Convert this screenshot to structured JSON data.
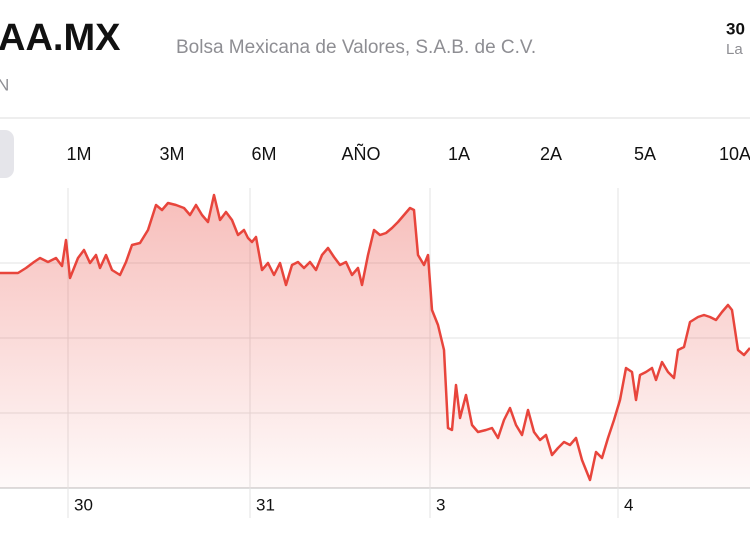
{
  "header": {
    "ticker": "AA.MX",
    "exchange": "Bolsa Mexicana de Valores, S.A.B. de C.V.",
    "sub": "N",
    "right_top": "30",
    "right_sub": "La"
  },
  "ranges": [
    "1M",
    "3M",
    "6M",
    "AÑO",
    "1A",
    "2A",
    "5A",
    "10A"
  ],
  "chart_data": {
    "type": "line",
    "color": "#e8453c",
    "grid": true,
    "xlim": [
      0,
      750
    ],
    "ylim": [
      0,
      300
    ],
    "xticks": [
      {
        "value": 68,
        "label": "30"
      },
      {
        "value": 250,
        "label": "31"
      },
      {
        "value": 430,
        "label": "3"
      },
      {
        "value": 618,
        "label": "4"
      }
    ],
    "x": [
      0,
      18,
      26,
      34,
      40,
      48,
      56,
      62,
      66,
      70,
      78,
      84,
      90,
      96,
      100,
      106,
      112,
      120,
      126,
      132,
      140,
      148,
      156,
      162,
      168,
      176,
      184,
      190,
      196,
      202,
      208,
      214,
      220,
      226,
      232,
      238,
      244,
      248,
      252,
      256,
      262,
      268,
      274,
      280,
      286,
      292,
      298,
      304,
      310,
      316,
      322,
      328,
      334,
      340,
      346,
      352,
      358,
      362,
      368,
      374,
      380,
      386,
      392,
      398,
      404,
      410,
      414,
      418,
      424,
      428,
      432,
      438,
      444,
      448,
      452,
      456,
      460,
      466,
      472,
      478,
      486,
      492,
      498,
      504,
      510,
      516,
      522,
      528,
      534,
      540,
      546,
      552,
      558,
      564,
      570,
      576,
      582,
      590,
      596,
      602,
      608,
      614,
      620,
      626,
      632,
      636,
      640,
      646,
      652,
      656,
      662,
      668,
      674,
      678,
      684,
      690,
      698,
      704,
      710,
      716,
      722,
      728,
      732,
      738,
      744,
      750
    ],
    "values": [
      215,
      215,
      220,
      226,
      230,
      226,
      230,
      222,
      248,
      210,
      230,
      238,
      225,
      233,
      220,
      233,
      218,
      213,
      226,
      243,
      245,
      258,
      283,
      278,
      285,
      283,
      280,
      273,
      283,
      273,
      266,
      293,
      268,
      276,
      268,
      253,
      258,
      250,
      246,
      251,
      218,
      225,
      213,
      225,
      203,
      223,
      226,
      220,
      226,
      218,
      233,
      240,
      231,
      223,
      226,
      213,
      220,
      203,
      233,
      258,
      253,
      255,
      260,
      266,
      273,
      280,
      278,
      233,
      223,
      233,
      178,
      163,
      138,
      60,
      58,
      103,
      70,
      93,
      63,
      56,
      58,
      60,
      50,
      68,
      80,
      63,
      53,
      78,
      56,
      48,
      53,
      33,
      40,
      46,
      43,
      50,
      28,
      8,
      36,
      30,
      50,
      68,
      88,
      120,
      116,
      88,
      113,
      116,
      120,
      108,
      126,
      116,
      110,
      138,
      141,
      166,
      171,
      173,
      171,
      168,
      176,
      183,
      178,
      138,
      133,
      140
    ]
  }
}
